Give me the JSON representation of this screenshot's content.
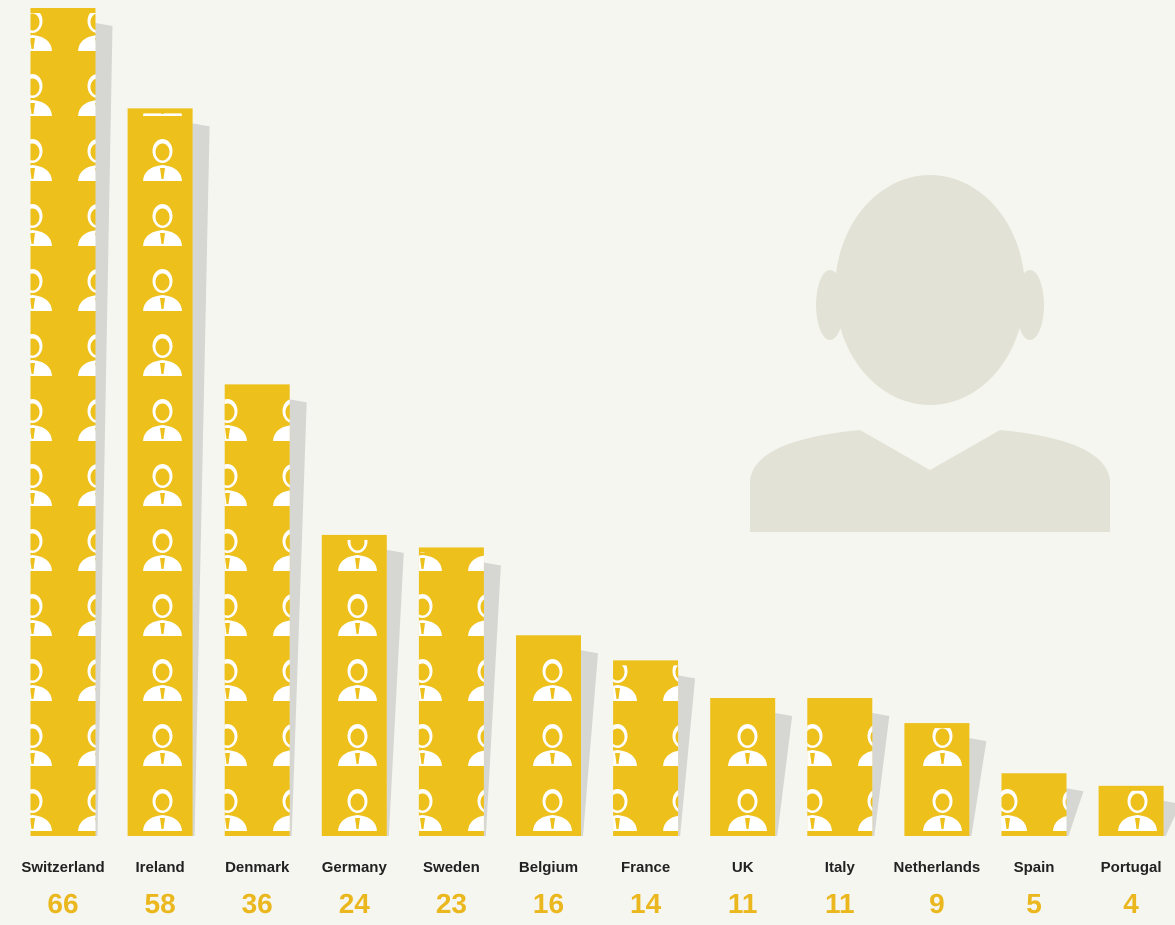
{
  "chart_data": {
    "type": "bar",
    "categories": [
      "Switzerland",
      "Ireland",
      "Denmark",
      "Germany",
      "Sweden",
      "Belgium",
      "France",
      "UK",
      "Italy",
      "Netherlands",
      "Spain",
      "Portugal"
    ],
    "values": [
      66,
      58,
      36,
      24,
      23,
      16,
      14,
      11,
      11,
      9,
      5,
      4
    ],
    "color": "#edc01c"
  }
}
